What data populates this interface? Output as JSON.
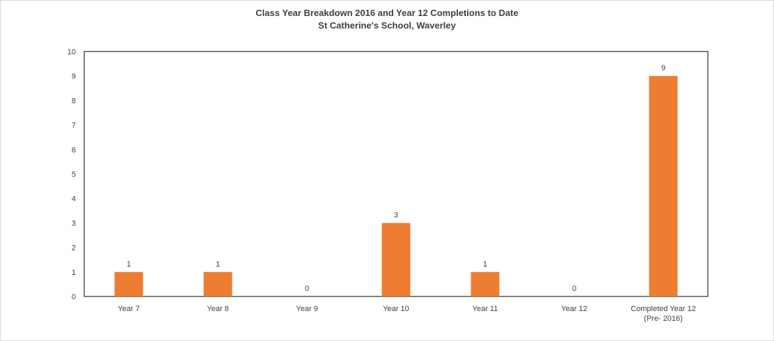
{
  "chart_data": {
    "type": "bar",
    "title": "Class Year Breakdown 2016 and Year 12 Completions to Date",
    "subtitle": "St Catherine's School, Waverley",
    "categories": [
      [
        "Year 7"
      ],
      [
        "Year 8"
      ],
      [
        "Year 9"
      ],
      [
        "Year 10"
      ],
      [
        "Year 11"
      ],
      [
        "Year 12"
      ],
      [
        "Completed Year 12",
        "(Pre- 2016)"
      ]
    ],
    "values": [
      1,
      1,
      0,
      3,
      1,
      0,
      9
    ],
    "data_labels": [
      "1",
      "1",
      "0",
      "3",
      "1",
      "0",
      "9"
    ],
    "ylim": [
      0,
      10
    ],
    "yticks": [
      0,
      1,
      2,
      3,
      4,
      5,
      6,
      7,
      8,
      9,
      10
    ],
    "xlabel": "",
    "ylabel": "",
    "grid": false,
    "legend": "none",
    "bar_color": "#ED7D31",
    "axis_color": "#000000",
    "text_color": "#404040"
  }
}
